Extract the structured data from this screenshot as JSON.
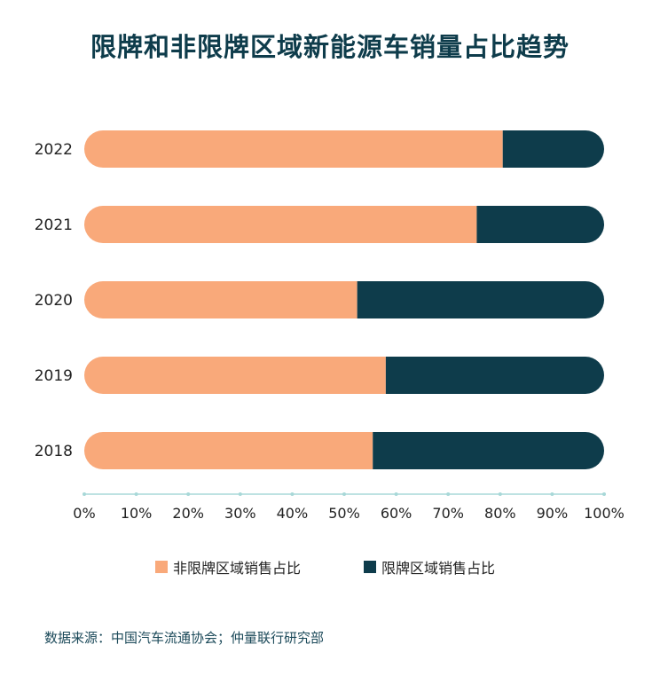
{
  "title": "限牌和非限牌区域新能源车销量占比趋势",
  "source": "数据来源：中国汽车流通协会；仲量联行研究部",
  "colors": {
    "non_restricted": "#f9a97a",
    "restricted": "#0e3c4b",
    "axis": "#a8d8d8"
  },
  "chart_data": {
    "type": "bar",
    "orientation": "horizontal",
    "stacked": true,
    "categories": [
      "2022",
      "2021",
      "2020",
      "2019",
      "2018"
    ],
    "series": [
      {
        "name": "非限牌区域销售占比",
        "values": [
          80.5,
          75.5,
          52.5,
          58,
          55.5
        ]
      },
      {
        "name": "限牌区域销售占比",
        "values": [
          19.5,
          24.5,
          47.5,
          42,
          44.5
        ]
      }
    ],
    "xlim": [
      0,
      100
    ],
    "xticks": [
      "0%",
      "10%",
      "20%",
      "30%",
      "40%",
      "50%",
      "60%",
      "70%",
      "80%",
      "90%",
      "100%"
    ],
    "legend": "bottom",
    "grid": false
  }
}
